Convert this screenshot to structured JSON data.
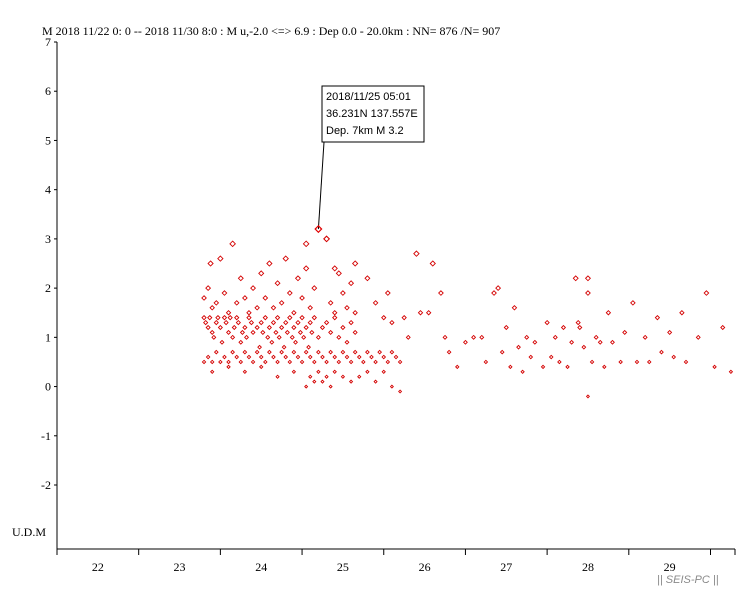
{
  "header": {
    "text": "M    2018 11/22 0: 0 -- 2018 11/30 8:0  : M u,-2.0 <=> 6.9   :  Dep 0.0 - 20.0km :  NN= 876 /N= 907"
  },
  "brand": "|| SEIS-PC ||",
  "colors": {
    "marker": "#d40000",
    "axis": "#000000",
    "annotation_marker": "#e00000"
  },
  "chart_data": {
    "type": "scatter",
    "title": "",
    "xlabel": "",
    "ylabel": "M",
    "ylabel_bottom": "U.D.M",
    "xlim": [
      21.5,
      29.8
    ],
    "ylim": [
      -3.3,
      7
    ],
    "x_ticks": [
      22,
      23,
      24,
      25,
      26,
      27,
      28,
      29
    ],
    "y_ticks": [
      7,
      6,
      5,
      4,
      3,
      2,
      1,
      0,
      -1,
      -2
    ],
    "grid": false,
    "annotation": {
      "lines": [
        "2018/11/25 05:01",
        "36.231N   137.557E",
        "Dep. 7km    M 3.2"
      ],
      "x": 24.7,
      "y": 3.2
    },
    "points": [
      [
        23.3,
        1.4
      ],
      [
        23.32,
        1.3
      ],
      [
        23.35,
        1.2
      ],
      [
        23.37,
        1.4
      ],
      [
        23.4,
        1.1
      ],
      [
        23.42,
        1.0
      ],
      [
        23.45,
        1.3
      ],
      [
        23.47,
        1.4
      ],
      [
        23.5,
        1.2
      ],
      [
        23.52,
        0.9
      ],
      [
        23.55,
        1.4
      ],
      [
        23.57,
        1.3
      ],
      [
        23.6,
        1.1
      ],
      [
        23.62,
        1.4
      ],
      [
        23.65,
        1.0
      ],
      [
        23.67,
        1.2
      ],
      [
        23.7,
        1.4
      ],
      [
        23.72,
        1.3
      ],
      [
        23.75,
        0.9
      ],
      [
        23.77,
        1.1
      ],
      [
        23.8,
        1.2
      ],
      [
        23.82,
        1.0
      ],
      [
        23.85,
        1.4
      ],
      [
        23.88,
        1.3
      ],
      [
        23.9,
        1.1
      ],
      [
        23.95,
        1.2
      ],
      [
        23.98,
        0.8
      ],
      [
        24.0,
        1.3
      ],
      [
        24.02,
        1.1
      ],
      [
        24.05,
        1.4
      ],
      [
        24.08,
        1.0
      ],
      [
        24.1,
        1.2
      ],
      [
        24.13,
        0.9
      ],
      [
        24.15,
        1.3
      ],
      [
        24.18,
        1.1
      ],
      [
        24.2,
        1.4
      ],
      [
        24.22,
        1.0
      ],
      [
        24.25,
        1.2
      ],
      [
        24.28,
        0.8
      ],
      [
        24.3,
        1.3
      ],
      [
        24.32,
        1.1
      ],
      [
        24.35,
        1.4
      ],
      [
        24.38,
        1.0
      ],
      [
        24.4,
        1.2
      ],
      [
        24.42,
        0.9
      ],
      [
        24.45,
        1.3
      ],
      [
        24.48,
        1.1
      ],
      [
        24.5,
        1.4
      ],
      [
        24.52,
        1.0
      ],
      [
        24.55,
        1.2
      ],
      [
        24.58,
        0.8
      ],
      [
        24.6,
        1.3
      ],
      [
        24.62,
        1.1
      ],
      [
        24.65,
        1.4
      ],
      [
        24.7,
        1.0
      ],
      [
        24.75,
        1.2
      ],
      [
        24.8,
        1.3
      ],
      [
        24.85,
        1.1
      ],
      [
        24.9,
        1.4
      ],
      [
        24.95,
        1.0
      ],
      [
        25.0,
        1.2
      ],
      [
        25.05,
        0.9
      ],
      [
        25.1,
        1.3
      ],
      [
        25.15,
        1.1
      ],
      [
        23.3,
        0.5
      ],
      [
        23.35,
        0.6
      ],
      [
        23.4,
        0.5
      ],
      [
        23.45,
        0.7
      ],
      [
        23.5,
        0.5
      ],
      [
        23.55,
        0.6
      ],
      [
        23.6,
        0.5
      ],
      [
        23.65,
        0.7
      ],
      [
        23.7,
        0.6
      ],
      [
        23.75,
        0.5
      ],
      [
        23.8,
        0.7
      ],
      [
        23.85,
        0.6
      ],
      [
        23.9,
        0.5
      ],
      [
        23.95,
        0.7
      ],
      [
        24.0,
        0.6
      ],
      [
        24.05,
        0.5
      ],
      [
        24.1,
        0.7
      ],
      [
        24.15,
        0.6
      ],
      [
        24.2,
        0.5
      ],
      [
        24.25,
        0.7
      ],
      [
        24.3,
        0.6
      ],
      [
        24.35,
        0.5
      ],
      [
        24.4,
        0.7
      ],
      [
        24.45,
        0.6
      ],
      [
        24.5,
        0.5
      ],
      [
        24.55,
        0.7
      ],
      [
        24.6,
        0.6
      ],
      [
        24.65,
        0.5
      ],
      [
        24.7,
        0.7
      ],
      [
        24.75,
        0.6
      ],
      [
        24.8,
        0.5
      ],
      [
        24.85,
        0.7
      ],
      [
        24.9,
        0.6
      ],
      [
        24.95,
        0.5
      ],
      [
        25.0,
        0.7
      ],
      [
        25.05,
        0.6
      ],
      [
        25.1,
        0.5
      ],
      [
        25.15,
        0.7
      ],
      [
        25.2,
        0.6
      ],
      [
        25.25,
        0.5
      ],
      [
        25.3,
        0.7
      ],
      [
        25.35,
        0.6
      ],
      [
        25.4,
        0.5
      ],
      [
        25.45,
        0.7
      ],
      [
        25.5,
        0.6
      ],
      [
        25.55,
        0.5
      ],
      [
        25.6,
        0.7
      ],
      [
        25.65,
        0.6
      ],
      [
        25.7,
        0.5
      ],
      [
        23.3,
        1.8
      ],
      [
        23.35,
        2.0
      ],
      [
        23.38,
        2.5
      ],
      [
        23.4,
        1.6
      ],
      [
        23.45,
        1.7
      ],
      [
        23.5,
        2.6
      ],
      [
        23.55,
        1.9
      ],
      [
        23.6,
        1.5
      ],
      [
        23.65,
        2.9
      ],
      [
        23.7,
        1.7
      ],
      [
        23.75,
        2.2
      ],
      [
        23.8,
        1.8
      ],
      [
        23.85,
        1.5
      ],
      [
        23.9,
        2.0
      ],
      [
        23.95,
        1.6
      ],
      [
        24.0,
        2.3
      ],
      [
        24.05,
        1.8
      ],
      [
        24.1,
        2.5
      ],
      [
        24.15,
        1.6
      ],
      [
        24.2,
        2.1
      ],
      [
        24.25,
        1.7
      ],
      [
        24.3,
        2.6
      ],
      [
        24.35,
        1.9
      ],
      [
        24.4,
        1.5
      ],
      [
        24.45,
        2.2
      ],
      [
        24.5,
        1.8
      ],
      [
        24.55,
        2.4
      ],
      [
        24.6,
        1.6
      ],
      [
        24.65,
        2.0
      ],
      [
        24.55,
        2.9
      ],
      [
        24.8,
        3.0
      ],
      [
        24.85,
        1.7
      ],
      [
        24.9,
        1.5
      ],
      [
        24.95,
        2.3
      ],
      [
        25.0,
        1.9
      ],
      [
        25.05,
        1.6
      ],
      [
        25.1,
        2.1
      ],
      [
        25.15,
        1.5
      ],
      [
        23.4,
        0.3
      ],
      [
        23.6,
        0.4
      ],
      [
        23.8,
        0.3
      ],
      [
        24.0,
        0.4
      ],
      [
        24.2,
        0.2
      ],
      [
        24.4,
        0.3
      ],
      [
        24.55,
        0.0
      ],
      [
        24.6,
        0.2
      ],
      [
        24.65,
        0.1
      ],
      [
        24.7,
        0.3
      ],
      [
        24.75,
        0.1
      ],
      [
        24.8,
        0.2
      ],
      [
        24.85,
        0.0
      ],
      [
        24.9,
        0.3
      ],
      [
        25.0,
        0.2
      ],
      [
        25.1,
        0.1
      ],
      [
        25.2,
        0.2
      ],
      [
        25.3,
        0.3
      ],
      [
        25.4,
        0.1
      ],
      [
        25.5,
        0.3
      ],
      [
        25.6,
        0.0
      ],
      [
        25.7,
        -0.1
      ],
      [
        24.8,
        3.0
      ],
      [
        24.9,
        2.4
      ],
      [
        25.15,
        2.5
      ],
      [
        25.3,
        2.2
      ],
      [
        25.4,
        1.7
      ],
      [
        25.5,
        1.4
      ],
      [
        25.55,
        1.9
      ],
      [
        25.6,
        1.3
      ],
      [
        25.75,
        1.4
      ],
      [
        25.8,
        1.0
      ],
      [
        25.9,
        2.7
      ],
      [
        25.95,
        1.5
      ],
      [
        26.05,
        1.5
      ],
      [
        26.1,
        2.5
      ],
      [
        26.2,
        1.9
      ],
      [
        26.25,
        1.0
      ],
      [
        26.3,
        0.7
      ],
      [
        26.4,
        0.4
      ],
      [
        26.5,
        0.9
      ],
      [
        26.6,
        1.0
      ],
      [
        26.7,
        1.0
      ],
      [
        26.75,
        0.5
      ],
      [
        26.85,
        1.9
      ],
      [
        26.9,
        2.0
      ],
      [
        26.95,
        0.7
      ],
      [
        27.0,
        1.2
      ],
      [
        27.05,
        0.4
      ],
      [
        27.1,
        1.6
      ],
      [
        27.15,
        0.8
      ],
      [
        27.2,
        0.3
      ],
      [
        27.25,
        1.0
      ],
      [
        27.3,
        0.6
      ],
      [
        27.35,
        0.9
      ],
      [
        27.45,
        0.4
      ],
      [
        27.5,
        1.3
      ],
      [
        27.55,
        0.6
      ],
      [
        27.6,
        1.0
      ],
      [
        27.65,
        0.5
      ],
      [
        27.7,
        1.2
      ],
      [
        27.75,
        0.4
      ],
      [
        27.8,
        0.9
      ],
      [
        27.85,
        2.2
      ],
      [
        27.9,
        1.2
      ],
      [
        27.95,
        0.8
      ],
      [
        28.0,
        1.9
      ],
      [
        28.0,
        2.2
      ],
      [
        27.88,
        1.3
      ],
      [
        28.0,
        -0.2
      ],
      [
        28.05,
        0.5
      ],
      [
        28.1,
        1.0
      ],
      [
        28.15,
        0.9
      ],
      [
        28.2,
        0.4
      ],
      [
        28.25,
        1.5
      ],
      [
        28.3,
        0.9
      ],
      [
        28.4,
        0.5
      ],
      [
        28.45,
        1.1
      ],
      [
        28.55,
        1.7
      ],
      [
        28.6,
        0.5
      ],
      [
        28.7,
        1.0
      ],
      [
        28.75,
        0.5
      ],
      [
        28.85,
        1.4
      ],
      [
        28.9,
        0.7
      ],
      [
        29.0,
        1.1
      ],
      [
        29.05,
        0.6
      ],
      [
        29.15,
        1.5
      ],
      [
        29.2,
        0.5
      ],
      [
        29.35,
        1.0
      ],
      [
        29.45,
        1.9
      ],
      [
        29.55,
        0.4
      ],
      [
        29.65,
        1.2
      ],
      [
        29.75,
        0.3
      ]
    ]
  }
}
